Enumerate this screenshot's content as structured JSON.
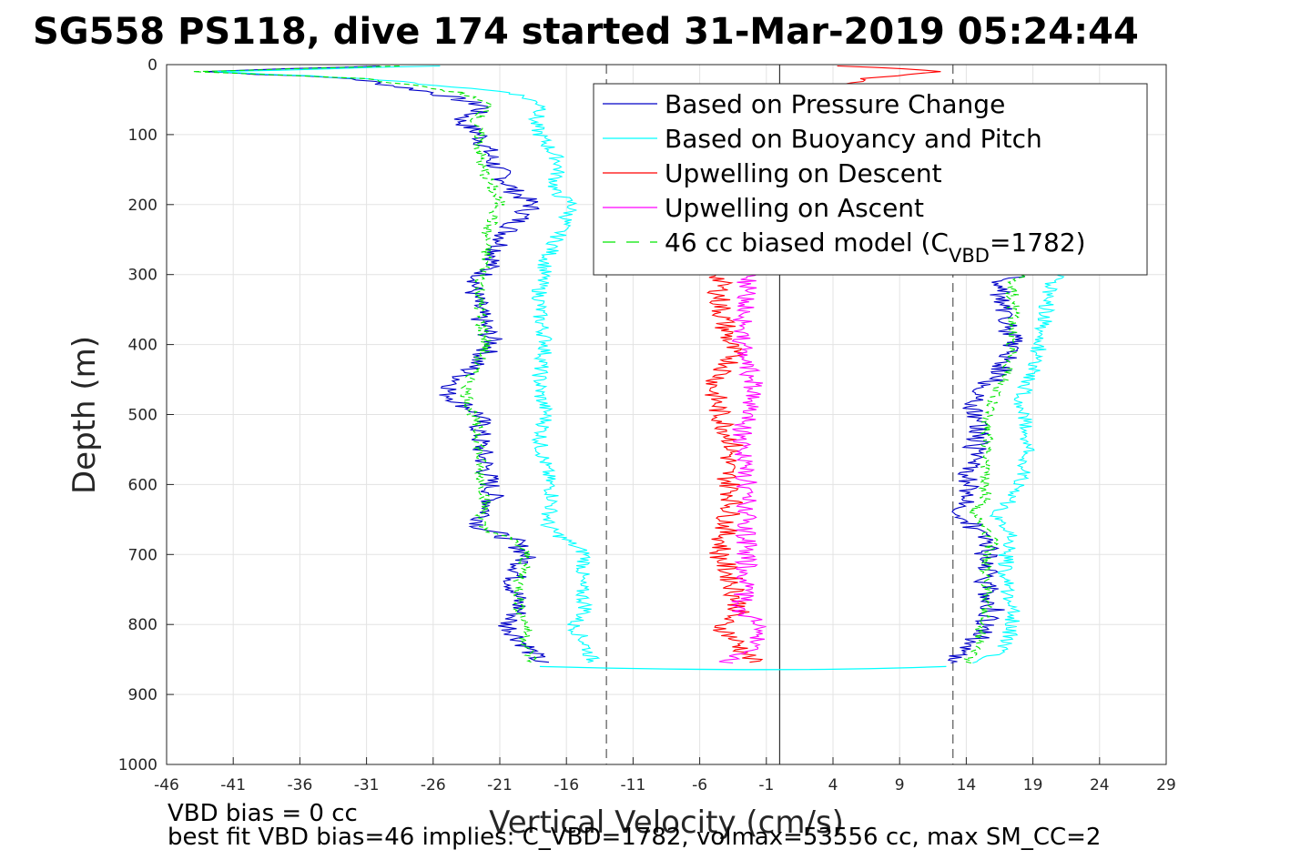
{
  "chart_data": {
    "type": "line",
    "title": "SG558 PS118, dive 174 started 31-Mar-2019 05:24:44",
    "xlabel": "Vertical Velocity (cm/s)",
    "ylabel": "Depth (m)",
    "xlim": [
      -46,
      29
    ],
    "ylim": [
      0,
      1000
    ],
    "y_reversed": true,
    "grid": true,
    "x_ticks": [
      -46,
      -41,
      -36,
      -31,
      -26,
      -21,
      -16,
      -11,
      -6,
      -1,
      4,
      9,
      14,
      19,
      24,
      29
    ],
    "y_ticks": [
      0,
      100,
      200,
      300,
      400,
      500,
      600,
      700,
      800,
      900,
      1000
    ],
    "legend_position": "top-right",
    "reference_lines": [
      {
        "x": -13,
        "style": "dashed",
        "color": "#555555"
      },
      {
        "x": 0,
        "style": "solid",
        "color": "#333333"
      },
      {
        "x": 13,
        "style": "dashed",
        "color": "#555555"
      }
    ],
    "series": [
      {
        "name": "Based on Pressure Change",
        "color": "#0000c8",
        "style": "solid",
        "descent": {
          "depth": [
            2,
            10,
            20,
            40,
            60,
            80,
            100,
            140,
            180,
            200,
            240,
            280,
            320,
            360,
            400,
            440,
            470,
            500,
            540,
            580,
            620,
            660,
            680,
            700,
            740,
            780,
            800,
            830,
            855
          ],
          "velocity": [
            -30,
            -43,
            -32,
            -26,
            -22,
            -24,
            -22.5,
            -21.5,
            -20,
            -18.5,
            -20.5,
            -21.5,
            -23,
            -22.5,
            -21.5,
            -23.5,
            -25,
            -22.5,
            -22.5,
            -22,
            -21.5,
            -22.5,
            -20,
            -19,
            -20,
            -19.5,
            -20.5,
            -19,
            -18
          ]
        },
        "ascent": {
          "depth": [
            855,
            830,
            800,
            780,
            740,
            700,
            680,
            660,
            640,
            620,
            600,
            560,
            520,
            480,
            440,
            400,
            360,
            330,
            310,
            300
          ],
          "velocity": [
            12.5,
            14.5,
            15.5,
            16,
            15.5,
            15.5,
            15.5,
            14.5,
            13.5,
            14.5,
            14,
            14.5,
            15,
            14.5,
            16.5,
            17.5,
            17,
            16.5,
            16.5,
            18
          ]
        }
      },
      {
        "name": "Based on Buoyancy and Pitch",
        "color": "#00ffff",
        "style": "solid",
        "descent": {
          "depth": [
            2,
            10,
            20,
            40,
            60,
            80,
            100,
            140,
            180,
            200,
            240,
            280,
            320,
            360,
            400,
            440,
            470,
            500,
            540,
            580,
            620,
            660,
            680,
            700,
            740,
            780,
            800,
            830,
            855
          ],
          "velocity": [
            -26,
            -42,
            -31,
            -20,
            -17.5,
            -18.5,
            -18,
            -16.5,
            -17,
            -15.5,
            -16.5,
            -17.5,
            -18,
            -18,
            -17.5,
            -18,
            -18,
            -17.5,
            -18,
            -17.5,
            -17,
            -17.5,
            -16,
            -14.5,
            -15,
            -14.5,
            -15.5,
            -14.5,
            -14
          ]
        },
        "ascent": {
          "depth": [
            855,
            830,
            800,
            780,
            740,
            700,
            680,
            660,
            640,
            620,
            600,
            560,
            520,
            480,
            440,
            400,
            360,
            330,
            310,
            300
          ],
          "velocity": [
            15,
            17,
            17.5,
            17.5,
            17,
            17,
            17.5,
            17,
            16,
            17.5,
            18,
            18.5,
            18.5,
            18,
            19,
            19.5,
            20,
            20,
            20.5,
            21
          ]
        }
      },
      {
        "name": "Upwelling on Descent",
        "color": "#ff0000",
        "style": "solid",
        "descent": {
          "depth": [
            2,
            10,
            20,
            300,
            340,
            380,
            420,
            460,
            500,
            540,
            580,
            620,
            660,
            700,
            740,
            780,
            800,
            830,
            855
          ],
          "velocity": [
            5,
            12,
            6,
            -4.5,
            -4.5,
            -4,
            -3.5,
            -5,
            -4.5,
            -3.5,
            -4,
            -3.5,
            -4,
            -4.5,
            -3.5,
            -3,
            -4.5,
            -3,
            -2
          ]
        }
      },
      {
        "name": "Upwelling on Ascent",
        "color": "#ff00ff",
        "style": "solid",
        "ascent": {
          "depth": [
            855,
            830,
            800,
            780,
            740,
            700,
            660,
            620,
            580,
            540,
            500,
            460,
            420,
            380,
            340,
            300
          ],
          "velocity": [
            -4,
            -2,
            -1.5,
            -3,
            -2.5,
            -2.5,
            -2.5,
            -2.5,
            -2.5,
            -3,
            -2.5,
            -2,
            -2.5,
            -3,
            -2.5,
            -2.5
          ]
        }
      },
      {
        "name": "46 cc biased model (C",
        "name_sub": "VBD",
        "name_suffix": "=1782)",
        "color": "#00e600",
        "style": "dashed",
        "descent": {
          "depth": [
            2,
            10,
            20,
            40,
            60,
            80,
            100,
            140,
            180,
            200,
            240,
            280,
            320,
            360,
            400,
            440,
            470,
            500,
            540,
            580,
            620,
            660,
            680,
            700,
            740,
            780,
            800,
            830,
            855
          ],
          "velocity": [
            -29,
            -44,
            -31,
            -24,
            -21.5,
            -23,
            -22.5,
            -22.5,
            -21.5,
            -21,
            -22,
            -22,
            -22.5,
            -22.5,
            -22,
            -23,
            -23.5,
            -23,
            -22.5,
            -22.5,
            -22,
            -22.5,
            -20,
            -19,
            -19.5,
            -19.5,
            -19,
            -19,
            -18.5
          ]
        },
        "ascent": {
          "depth": [
            855,
            830,
            800,
            780,
            740,
            700,
            680,
            660,
            640,
            620,
            600,
            560,
            520,
            480,
            440,
            400,
            360,
            330,
            310,
            300
          ],
          "velocity": [
            14,
            15,
            15,
            15.5,
            15.5,
            15.5,
            16,
            15,
            14.5,
            15.5,
            15.5,
            15.5,
            15.5,
            16,
            17,
            17.5,
            17.5,
            17.5,
            17.5,
            18.5
          ]
        }
      }
    ],
    "bottom_turn": {
      "depth": 865,
      "from_velocity": -18,
      "to_velocity": 12.5
    }
  },
  "notes": {
    "line1": "VBD bias = 0 cc",
    "line2": "best fit VBD bias=46 implies: C_VBD=1782, volmax=53556 cc, max SM_CC=2"
  }
}
